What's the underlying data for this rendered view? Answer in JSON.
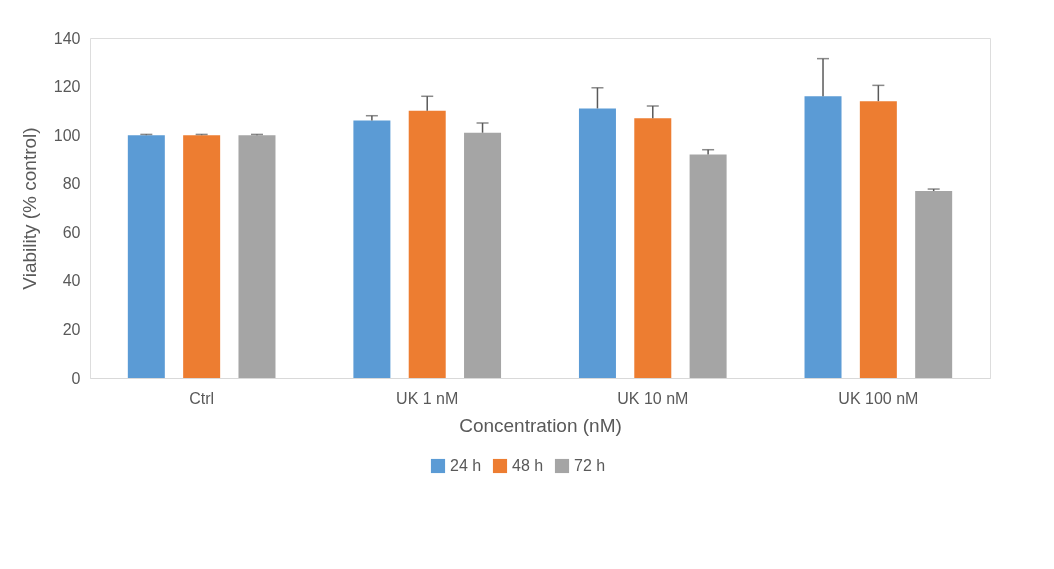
{
  "chart_data": {
    "type": "bar",
    "xlabel": "Concentration (nM)",
    "ylabel": "Viability (% control)",
    "categories": [
      "Ctrl",
      "UK 1 nM",
      "UK 10 nM",
      "UK 100 nM"
    ],
    "series": [
      {
        "name": "24 h",
        "color": "#5b9bd5",
        "values": [
          100,
          106,
          111,
          116
        ],
        "errors": [
          [
            100,
            100.3
          ],
          [
            106,
            108
          ],
          [
            111,
            119.5
          ],
          [
            116,
            131.5
          ]
        ]
      },
      {
        "name": "48 h",
        "color": "#ed7d31",
        "values": [
          100,
          110,
          107,
          114
        ],
        "errors": [
          [
            100,
            100.3
          ],
          [
            110,
            116
          ],
          [
            107,
            112
          ],
          [
            114,
            120.5
          ]
        ]
      },
      {
        "name": "72 h",
        "color": "#a5a5a5",
        "values": [
          100,
          101,
          92,
          77
        ],
        "errors": [
          [
            100,
            100.3
          ],
          [
            101,
            105
          ],
          [
            92,
            94
          ],
          [
            77,
            77.8
          ]
        ]
      }
    ],
    "ylim": [
      0,
      140
    ],
    "yticks": [
      0,
      20,
      40,
      60,
      80,
      100,
      120,
      140
    ],
    "grid": false,
    "legend": "bottom"
  }
}
